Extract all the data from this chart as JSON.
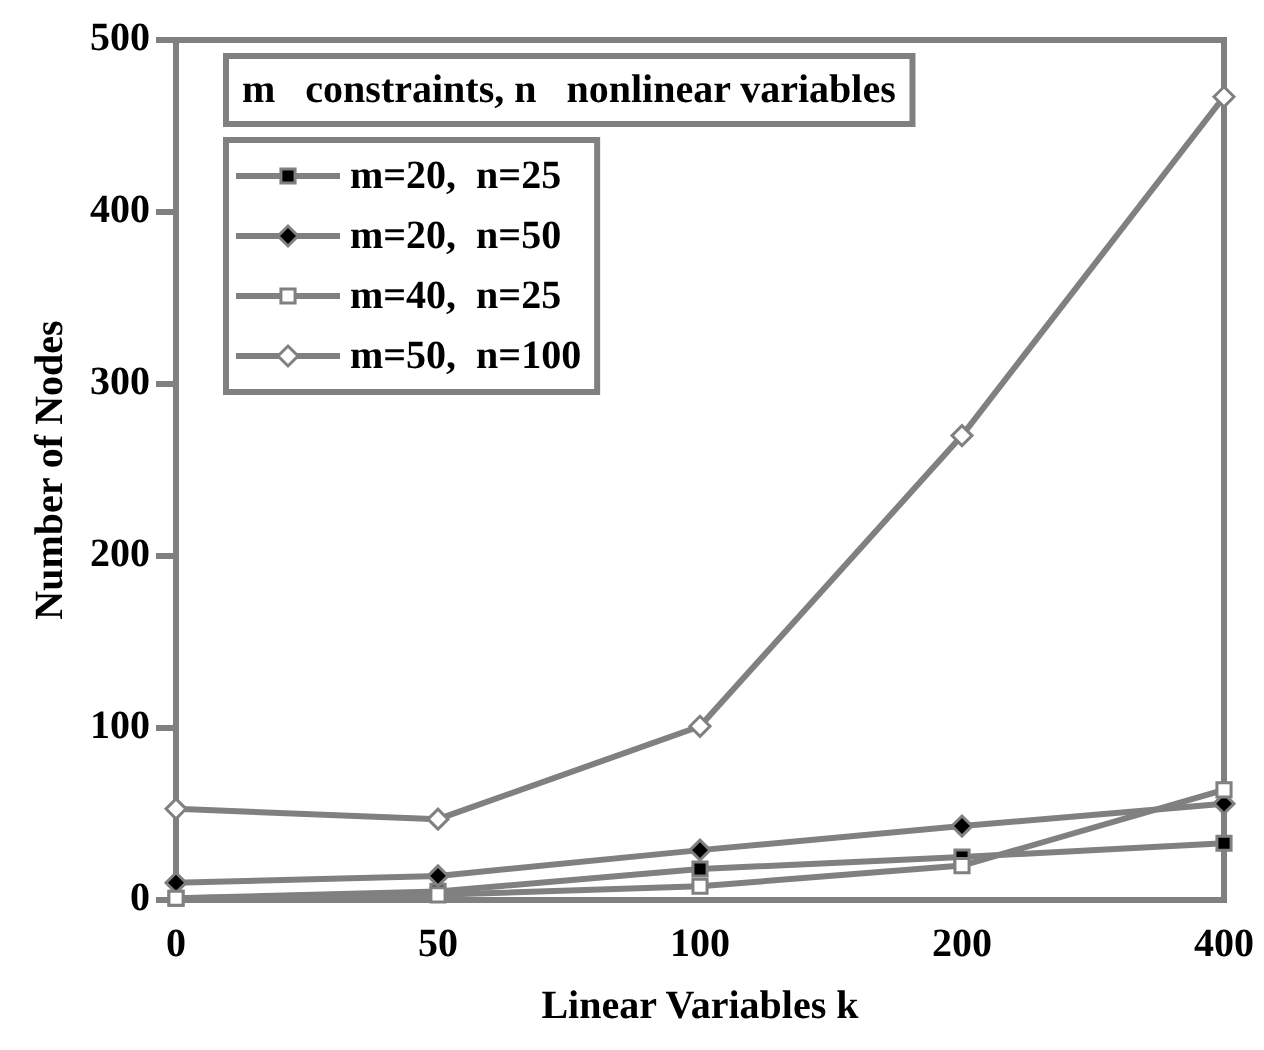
{
  "chart_data": {
    "type": "line",
    "xlabel": "Linear Variables k",
    "ylabel": "Number of Nodes",
    "legend_title": "m   constraints, n   nonlinear variables",
    "categories": [
      "0",
      "50",
      "100",
      "200",
      "400"
    ],
    "series": [
      {
        "name": "m=20,  n=25",
        "color": "#000000",
        "marker": "square",
        "values": [
          1,
          5,
          18,
          25,
          33
        ]
      },
      {
        "name": "m=20,  n=50",
        "color": "#000000",
        "marker": "diamond",
        "values": [
          10,
          14,
          29,
          43,
          56
        ]
      },
      {
        "name": "m=40,  n=25",
        "color": "#ffffff",
        "marker": "square",
        "values": [
          1,
          3,
          8,
          20,
          64
        ]
      },
      {
        "name": "m=50,  n=100",
        "color": "#ffffff",
        "marker": "diamond",
        "values": [
          53,
          47,
          101,
          270,
          467
        ]
      }
    ],
    "ylim": [
      0,
      500
    ],
    "yticks": [
      0,
      100,
      200,
      300,
      400,
      500
    ],
    "grid": false,
    "legend": "top left"
  }
}
